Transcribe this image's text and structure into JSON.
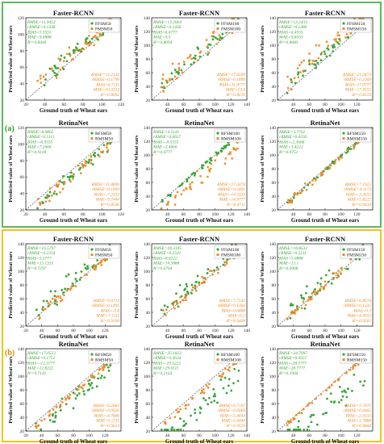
{
  "colors": {
    "green": "#3aa53a",
    "orange": "#ef8a27",
    "section_a_border": "#5cb85c",
    "section_b_border": "#f0c419",
    "diag": "#333333"
  },
  "sections": [
    {
      "label": "(a)",
      "label_color": "#2e9a2e"
    },
    {
      "label": "(b)",
      "label_color": "#e08b00"
    }
  ],
  "common": {
    "xlabel": "Ground truth of Wheat ears",
    "ylabel": "Predicted value of Wheat ears"
  },
  "chart_data": [
    {
      "id": "a1",
      "type": "scatter",
      "title": "Faster-RCNN",
      "xlim": [
        20,
        120
      ],
      "ylim": [
        20,
        120
      ],
      "xticks": [
        20,
        40,
        60,
        80,
        100,
        120
      ],
      "yticks": [
        20,
        40,
        60,
        80,
        100,
        120
      ],
      "legend": [
        "FFSM50",
        "FMSM50"
      ],
      "stats_green": [
        "RMSE=11.9452",
        "rRMSE=0.1438",
        "BIAS=5.5555",
        "MAE=9.0888",
        "R²=0.8440"
      ],
      "stats_orange": [
        "RMSE=13.2134",
        "rRMSE=0.1790",
        "BIAS=6.7111",
        "MAE=10.3333",
        "R²=0.8092"
      ],
      "bias": [
        5.6,
        6.7
      ],
      "spread": [
        12,
        13
      ]
    },
    {
      "id": "a2",
      "type": "scatter",
      "title": "Faster-RCNN",
      "xlim": [
        20,
        140
      ],
      "ylim": [
        20,
        140
      ],
      "xticks": [
        40,
        60,
        80,
        100,
        120,
        140
      ],
      "yticks": [
        20,
        40,
        60,
        80,
        100,
        120,
        140
      ],
      "legend": [
        "FFSM100",
        "FMSM100"
      ],
      "stats_green": [
        "RMSE=13.2064",
        "rRMSE=0.1436",
        "BIAS=6.6777",
        "MAE=9.5",
        "R²=0.8094"
      ],
      "stats_orange": [
        "RMSE=17.6509",
        "rRMSE=0.1899",
        "BIAS=11.9777",
        "MAE=13.4",
        "R²=0.8076"
      ],
      "bias": [
        6.7,
        12
      ],
      "spread": [
        13,
        17
      ]
    },
    {
      "id": "a3",
      "type": "scatter",
      "title": "Faster-RCNN",
      "xlim": [
        20,
        140
      ],
      "ylim": [
        20,
        140
      ],
      "xticks": [
        40,
        60,
        80,
        100,
        120
      ],
      "yticks": [
        20,
        40,
        60,
        80,
        100,
        120,
        140
      ],
      "legend": [
        "FFSM150",
        "FMSM150"
      ],
      "stats_green": [
        "RMSE=13.2433",
        "rRMSE=0.1480",
        "BIAS=6.4555",
        "MAE=9.8333",
        "R²=0.8083"
      ],
      "stats_orange": [
        "RMSE=21.0473",
        "rRMSE=0.2369",
        "BIAS=17.0777",
        "MAE=17.4555",
        "R²=0.8159"
      ],
      "bias": [
        6.5,
        17
      ],
      "spread": [
        13,
        21
      ]
    },
    {
      "id": "a4",
      "type": "scatter",
      "title": "RetinaNet",
      "xlim": [
        20,
        120
      ],
      "ylim": [
        20,
        120
      ],
      "xticks": [
        20,
        40,
        60,
        80,
        100,
        120
      ],
      "yticks": [
        20,
        40,
        60,
        80,
        100,
        120
      ],
      "legend": [
        "RFSM50",
        "RMSM50"
      ],
      "stats_green": [
        "RMSE=8.9802",
        "rRMSE=0.1115",
        "BIAS=-6.9555",
        "MAE=7.2666",
        "R²=0.9118"
      ],
      "stats_orange": [
        "RMSE=11.8890",
        "rRMSE=0.1669",
        "BIAS=-7.2333",
        "MAE=9.7444",
        "R²=0.8506"
      ],
      "bias": [
        -7,
        -7.2
      ],
      "spread": [
        8,
        11
      ]
    },
    {
      "id": "a5",
      "type": "scatter",
      "title": "RetinaNet",
      "xlim": [
        20,
        140
      ],
      "ylim": [
        20,
        140
      ],
      "xticks": [
        40,
        60,
        80,
        100,
        120,
        140
      ],
      "yticks": [
        20,
        40,
        60,
        80,
        100,
        120,
        140
      ],
      "legend": [
        "RFSM100",
        "RMSM100"
      ],
      "stats_green": [
        "RMSE=4.5141",
        "rRMSE=0.0657",
        "BIAS=-0.5555",
        "MAE=3.4666",
        "R²=0.9777"
      ],
      "stats_orange": [
        "RMSE=17.3474",
        "rRMSE=0.2491",
        "BIAS=-14.3333",
        "MAE=14.9777",
        "R²=0.6711"
      ],
      "bias": [
        -0.6,
        -14.3
      ],
      "spread": [
        4.5,
        15
      ]
    },
    {
      "id": "a6",
      "type": "scatter",
      "title": "RetinaNet",
      "xlim": [
        20,
        140
      ],
      "ylim": [
        20,
        140
      ],
      "xticks": [
        40,
        60,
        80,
        100,
        120
      ],
      "yticks": [
        20,
        40,
        60,
        80,
        100,
        120,
        140
      ],
      "legend": [
        "RFSM150",
        "RMSM150"
      ],
      "stats_green": [
        "RMSE=3.7702",
        "rRMSE=0.0593",
        "BIAS=-2.3666",
        "MAE=3.4222",
        "R²=0.9751"
      ],
      "stats_orange": [
        "RMSE=7.1925",
        "rRMSE=0.1172",
        "BIAS=-3.3555",
        "MAE=5.8222",
        "R²=0.9434"
      ],
      "bias": [
        -2.4,
        -3.4
      ],
      "spread": [
        3.8,
        7
      ]
    },
    {
      "id": "b1",
      "type": "scatter",
      "title": "Faster-RCNN",
      "xlim": [
        20,
        140
      ],
      "ylim": [
        20,
        140
      ],
      "xticks": [
        20,
        40,
        60,
        80,
        100,
        120
      ],
      "yticks": [
        20,
        40,
        60,
        80,
        100,
        120,
        140
      ],
      "legend": [
        "FFSM50",
        "FMSM50"
      ],
      "stats_green": [
        "RMSE=16.5797",
        "rRMSE=0.2314",
        "BIAS=5.3777",
        "MAE=13.1333",
        "R²=0.7297"
      ],
      "stats_orange": [
        "RMSE=9.0774",
        "rRMSE=0.1495",
        "BIAS=-0.8",
        "MAE=7.3111",
        "R²=0.9109"
      ],
      "bias": [
        5.4,
        -0.8
      ],
      "spread": [
        16,
        9
      ]
    },
    {
      "id": "b2",
      "type": "scatter",
      "title": "Faster-RCNN",
      "xlim": [
        20,
        140
      ],
      "ylim": [
        20,
        140
      ],
      "xticks": [
        40,
        60,
        80,
        100,
        120,
        140
      ],
      "yticks": [
        20,
        40,
        60,
        80,
        100,
        120,
        140
      ],
      "legend": [
        "FFSM100",
        "FMSM100"
      ],
      "stats_green": [
        "RMSE=18.3105",
        "rRMSE=0.2541",
        "BIAS=8.0222",
        "MAE=14.5888",
        "R²=0.6704"
      ],
      "stats_orange": [
        "RMSE=7.7545",
        "rRMSE=0.1366",
        "BIAS=0.6888",
        "MAE=6.2",
        "R²=0.9409"
      ],
      "bias": [
        8,
        0.7
      ],
      "spread": [
        18,
        7.5
      ]
    },
    {
      "id": "b3",
      "type": "scatter",
      "title": "Faster-RCNN",
      "xlim": [
        20,
        140
      ],
      "ylim": [
        20,
        140
      ],
      "xticks": [
        40,
        60,
        80,
        100,
        120
      ],
      "yticks": [
        20,
        40,
        60,
        80,
        100,
        120,
        140
      ],
      "legend": [
        "FFSM150",
        "FMSM150"
      ],
      "stats_green": [
        "RMSE=18.8532",
        "rRMSE=0.2211",
        "BIAS=5.0888",
        "MAE=13.1",
        "R²=0.6908"
      ],
      "stats_orange": [
        "RMSE=6.8574",
        "rRMSE=0.1235",
        "BIAS=0.3",
        "MAE=4.4555",
        "R²=0.9561"
      ],
      "bias": [
        5,
        0.3
      ],
      "spread": [
        18,
        6.8
      ]
    },
    {
      "id": "b4",
      "type": "scatter",
      "title": "RetinaNet",
      "xlim": [
        20,
        140
      ],
      "ylim": [
        20,
        140
      ],
      "xticks": [
        20,
        40,
        60,
        80,
        100,
        120
      ],
      "yticks": [
        20,
        40,
        60,
        80,
        100,
        120,
        140
      ],
      "legend": [
        "RFSM50",
        "RMSM50"
      ],
      "stats_green": [
        "RMSE=17.0522",
        "rRMSE=0.1751",
        "BIAS=-12.3777",
        "MAE=12.8222",
        "R²=0.7141"
      ],
      "stats_orange": [
        "RMSE=6.2683",
        "rRMSE=0.0926",
        "BIAS=-4.7666",
        "MAE=5.2111",
        "R²=0.9614"
      ],
      "bias": [
        -12.4,
        -4.8
      ],
      "spread": [
        15,
        6
      ]
    },
    {
      "id": "b5",
      "type": "scatter",
      "title": "RetinaNet",
      "xlim": [
        20,
        140
      ],
      "ylim": [
        20,
        140
      ],
      "xticks": [
        40,
        60,
        80,
        100,
        120,
        140
      ],
      "yticks": [
        20,
        40,
        60,
        80,
        100,
        120,
        140
      ],
      "legend": [
        "RFSM100",
        "RMSM100"
      ],
      "stats_green": [
        "RMSE=35.1822",
        "rRMSE=0.3634",
        "BIAS=-29.5222",
        "MAE=29.6111",
        "R²=0.2163"
      ],
      "stats_orange": [
        "RMSE=6.7197",
        "rRMSE=0.0969",
        "BIAS=-5.4444",
        "MAE=5.6444",
        "R²=0.9559"
      ],
      "bias": [
        -29.5,
        -5.4
      ],
      "spread": [
        25,
        6.5
      ]
    },
    {
      "id": "b6",
      "type": "scatter",
      "title": "RetinaNet",
      "xlim": [
        20,
        140
      ],
      "ylim": [
        20,
        140
      ],
      "xticks": [
        40,
        60,
        80,
        100,
        120
      ],
      "yticks": [
        20,
        40,
        60,
        80,
        100,
        120,
        140
      ],
      "legend": [
        "RFSM150",
        "RMSM150"
      ],
      "stats_green": [
        "RMSE=34.7997",
        "rRMSE=0.3657",
        "BIAS=-28.7777",
        "MAE=28.7777",
        "R²=0.1904"
      ],
      "stats_orange": [
        "RMSE=3.7075",
        "rRMSE=0.0465",
        "BIAS=-2.0333",
        "MAE=2.7888",
        "R²=0.9868"
      ],
      "bias": [
        -28.8,
        -2
      ],
      "spread": [
        24,
        3.7
      ]
    }
  ]
}
